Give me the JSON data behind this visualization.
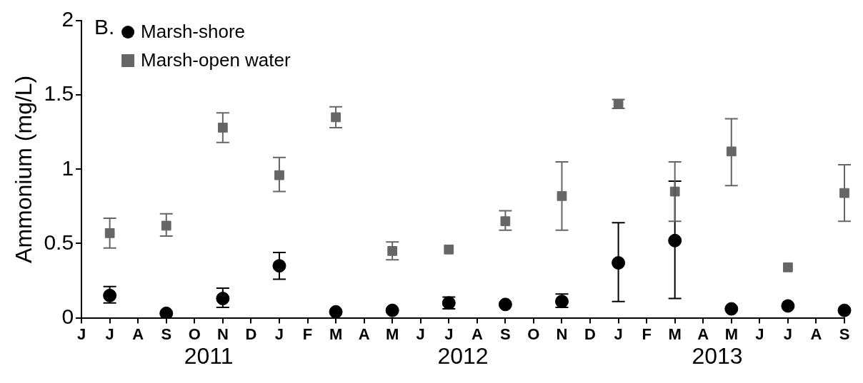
{
  "chart_data": {
    "type": "scatter",
    "title": "B.",
    "ylabel": "Ammonium (mg/L)",
    "categories": [
      "J",
      "J",
      "A",
      "S",
      "O",
      "N",
      "D",
      "J",
      "F",
      "M",
      "A",
      "M",
      "J",
      "J",
      "A",
      "S",
      "O",
      "N",
      "D",
      "J",
      "F",
      "M",
      "A",
      "M",
      "J",
      "J",
      "A",
      "S"
    ],
    "ylim": [
      0,
      2
    ],
    "yticks": [
      0,
      0.5,
      1,
      1.5,
      2
    ],
    "grid": false,
    "legend": "top left",
    "series": [
      {
        "name": "Marsh-shore",
        "color": "#000000",
        "marker": "circle",
        "values": [
          null,
          0.15,
          null,
          0.03,
          null,
          0.13,
          null,
          0.35,
          null,
          0.04,
          null,
          0.05,
          null,
          0.1,
          null,
          0.09,
          null,
          0.11,
          null,
          0.37,
          null,
          0.52,
          null,
          0.06,
          null,
          0.08,
          null,
          0.05
        ],
        "errors": [
          null,
          [
            0.1,
            0.21
          ],
          null,
          null,
          null,
          [
            0.07,
            0.2
          ],
          null,
          [
            0.26,
            0.44
          ],
          null,
          null,
          null,
          null,
          null,
          [
            0.06,
            0.14
          ],
          null,
          null,
          null,
          [
            0.07,
            0.16
          ],
          null,
          [
            0.11,
            0.64
          ],
          null,
          [
            0.13,
            0.92
          ],
          null,
          null,
          null,
          null,
          null,
          null
        ]
      },
      {
        "name": "Marsh-open water",
        "color": "#666666",
        "marker": "square",
        "values": [
          null,
          0.57,
          null,
          0.62,
          null,
          1.28,
          null,
          0.96,
          null,
          1.35,
          null,
          0.45,
          null,
          0.46,
          null,
          0.65,
          null,
          0.82,
          null,
          1.44,
          null,
          0.85,
          null,
          1.12,
          null,
          0.34,
          null,
          0.84
        ],
        "errors": [
          null,
          [
            0.47,
            0.67
          ],
          null,
          [
            0.55,
            0.7
          ],
          null,
          [
            1.18,
            1.38
          ],
          null,
          [
            0.85,
            1.08
          ],
          null,
          [
            1.28,
            1.42
          ],
          null,
          [
            0.39,
            0.51
          ],
          null,
          null,
          null,
          [
            0.59,
            0.72
          ],
          null,
          [
            0.59,
            1.05
          ],
          null,
          [
            1.41,
            1.47
          ],
          null,
          [
            0.65,
            1.05
          ],
          null,
          [
            0.89,
            1.34
          ],
          null,
          null,
          null,
          [
            0.65,
            1.03
          ]
        ]
      }
    ],
    "annotations": [
      "2011",
      "2012",
      "2013"
    ]
  }
}
